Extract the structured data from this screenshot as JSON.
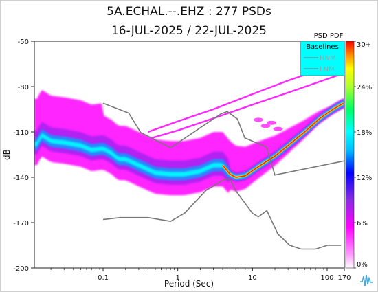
{
  "title_line1": "5A.ECHAL.--.EHZ : 277 PSDs",
  "title_line2": "16-JUL-2025 / 22-JUL-2025",
  "chart_data": {
    "type": "heatmap",
    "xlabel": "Period (Sec)",
    "ylabel": "dB",
    "x_scale": "log",
    "xlim": [
      0.012,
      170
    ],
    "ylim": [
      -200,
      -50
    ],
    "x_ticks": [
      {
        "value": 0.1,
        "label": "0.1"
      },
      {
        "value": 1,
        "label": "1"
      },
      {
        "value": 10,
        "label": "10"
      },
      {
        "value": 100,
        "label": "100"
      },
      {
        "value": 170,
        "label": "170"
      }
    ],
    "y_ticks": [
      {
        "value": -50,
        "label": "-50"
      },
      {
        "value": -80,
        "label": "-80"
      },
      {
        "value": -110,
        "label": "-110"
      },
      {
        "value": -140,
        "label": "-140"
      },
      {
        "value": -170,
        "label": "-170"
      },
      {
        "value": -200,
        "label": "-200"
      }
    ],
    "legend": {
      "title": "PSD PDF",
      "header": "Baselines",
      "entries": [
        "HNM",
        "LNM"
      ],
      "placement": "top-right"
    },
    "colorbar": {
      "labels": [
        "30+",
        "24%",
        "18%",
        "12%",
        "6%",
        "0%"
      ],
      "values": [
        30,
        24,
        18,
        12,
        6,
        0
      ]
    },
    "colors": {
      "baseline": "#777777",
      "legend_bg": "#00ffff",
      "pdf_low": "#ff00ff",
      "pdf_mid": "#1e90ff",
      "pdf_high": "#ff0000"
    },
    "baselines": {
      "HNM": [
        [
          0.1,
          -91
        ],
        [
          0.22,
          -97.5
        ],
        [
          0.32,
          -110.5
        ],
        [
          0.8,
          -120.5
        ],
        [
          3.8,
          -98
        ],
        [
          4.6,
          -96.5
        ],
        [
          6.3,
          -101.5
        ],
        [
          7.9,
          -114
        ],
        [
          15.4,
          -120
        ],
        [
          20,
          -138.5
        ],
        [
          354,
          -126
        ]
      ],
      "LNM": [
        [
          0.1,
          -168
        ],
        [
          0.17,
          -166.7
        ],
        [
          0.4,
          -166.7
        ],
        [
          0.8,
          -169.2
        ],
        [
          1.24,
          -163.7
        ],
        [
          2.4,
          -148.6
        ],
        [
          4.3,
          -141.1
        ],
        [
          5,
          -141.1
        ],
        [
          6,
          -149
        ],
        [
          10,
          -163.8
        ],
        [
          12,
          -166.2
        ],
        [
          15.6,
          -162.1
        ],
        [
          21.9,
          -177.5
        ],
        [
          31.6,
          -185
        ],
        [
          45,
          -187.5
        ],
        [
          70,
          -187.5
        ],
        [
          101,
          -185
        ],
        [
          154,
          -185
        ]
      ]
    },
    "mode": [
      [
        0.013,
        -118
      ],
      [
        0.015,
        -112
      ],
      [
        0.02,
        -116
      ],
      [
        0.03,
        -117
      ],
      [
        0.05,
        -119
      ],
      [
        0.07,
        -122
      ],
      [
        0.1,
        -121
      ],
      [
        0.13,
        -124
      ],
      [
        0.16,
        -128
      ],
      [
        0.2,
        -128
      ],
      [
        0.3,
        -132
      ],
      [
        0.5,
        -137
      ],
      [
        0.8,
        -138
      ],
      [
        1.2,
        -138
      ],
      [
        2,
        -136
      ],
      [
        3,
        -132
      ],
      [
        4,
        -132
      ],
      [
        5,
        -138
      ],
      [
        6,
        -140
      ],
      [
        8,
        -139
      ],
      [
        12,
        -133
      ],
      [
        20,
        -126
      ],
      [
        30,
        -119
      ],
      [
        50,
        -110
      ],
      [
        80,
        -101
      ],
      [
        120,
        -95
      ],
      [
        165,
        -91
      ]
    ]
  }
}
